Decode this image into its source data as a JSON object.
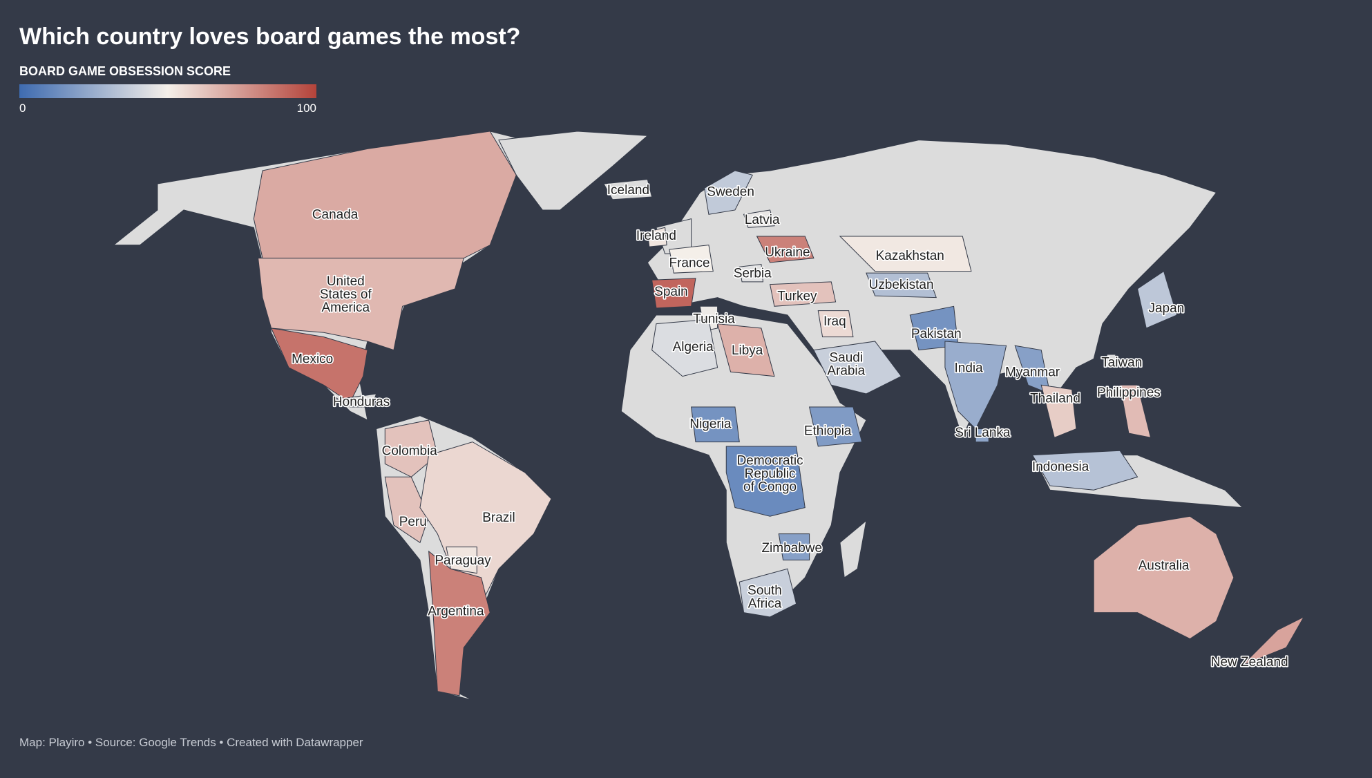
{
  "chart_data": {
    "type": "choropleth",
    "title": "Which country loves board games the most?",
    "legend_title": "BOARD GAME OBSESSION SCORE",
    "range": [
      0,
      100
    ],
    "legend_ticks": [
      0,
      100
    ],
    "colors": [
      "#3e6bb0",
      "#f4efe9",
      "#b4433a"
    ],
    "nodata_color": "#dcdcdc",
    "regions": [
      {
        "label": [
          "Canada"
        ],
        "value": 70
      },
      {
        "label": [
          "United",
          "States of",
          "America"
        ],
        "value": 66
      },
      {
        "label": [
          "Mexico"
        ],
        "value": 86
      },
      {
        "label": [
          "Honduras"
        ],
        "value": null
      },
      {
        "label": [
          "Colombia"
        ],
        "value": 63
      },
      {
        "label": [
          "Peru"
        ],
        "value": 63
      },
      {
        "label": [
          "Brazil"
        ],
        "value": 57
      },
      {
        "label": [
          "Paraguay"
        ],
        "value": 53
      },
      {
        "label": [
          "Argentina"
        ],
        "value": 82
      },
      {
        "label": [
          "Iceland"
        ],
        "value": null
      },
      {
        "label": [
          "Sweden"
        ],
        "value": 36
      },
      {
        "label": [
          "Latvia"
        ],
        "value": 47
      },
      {
        "label": [
          "Ireland"
        ],
        "value": 53
      },
      {
        "label": [
          "Ukraine"
        ],
        "value": 82
      },
      {
        "label": [
          "France"
        ],
        "value": 50
      },
      {
        "label": [
          "Serbia"
        ],
        "value": 45
      },
      {
        "label": [
          "Spain"
        ],
        "value": 90
      },
      {
        "label": [
          "Turkey"
        ],
        "value": 63
      },
      {
        "label": [
          "Tunisia"
        ],
        "value": 48
      },
      {
        "label": [
          "Iraq"
        ],
        "value": 56
      },
      {
        "label": [
          "Algeria"
        ],
        "value": 43
      },
      {
        "label": [
          "Libya"
        ],
        "value": 68
      },
      {
        "label": [
          "Kazakhstan"
        ],
        "value": 52
      },
      {
        "label": [
          "Uzbekistan"
        ],
        "value": 32
      },
      {
        "label": [
          "Pakistan"
        ],
        "value": 15
      },
      {
        "label": [
          "Saudi",
          "Arabia"
        ],
        "value": 38
      },
      {
        "label": [
          "India"
        ],
        "value": 25
      },
      {
        "label": [
          "Myanmar"
        ],
        "value": 20
      },
      {
        "label": [
          "Japan"
        ],
        "value": 35
      },
      {
        "label": [
          "Taiwan"
        ],
        "value": null
      },
      {
        "label": [
          "Philippines"
        ],
        "value": 65
      },
      {
        "label": [
          "Thailand"
        ],
        "value": 60
      },
      {
        "label": [
          "Sri Lanka"
        ],
        "value": 22
      },
      {
        "label": [
          "Indonesia"
        ],
        "value": 33
      },
      {
        "label": [
          "Nigeria"
        ],
        "value": 15
      },
      {
        "label": [
          "Ethiopia"
        ],
        "value": 18
      },
      {
        "label": [
          "Democratic",
          "Republic",
          "of Congo"
        ],
        "value": 12
      },
      {
        "label": [
          "Zimbabwe"
        ],
        "value": 20
      },
      {
        "label": [
          "South",
          "Africa"
        ],
        "value": 38
      },
      {
        "label": [
          "Australia"
        ],
        "value": 68
      },
      {
        "label": [
          "New Zealand"
        ],
        "value": 72
      }
    ],
    "source": "Map: Playiro • Source: Google Trends • Created with Datawrapper"
  }
}
